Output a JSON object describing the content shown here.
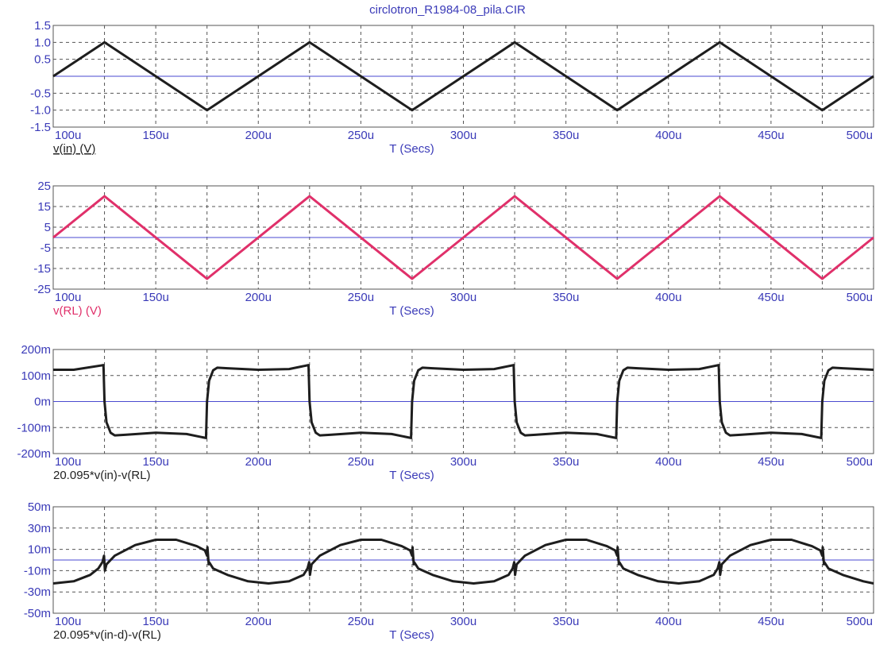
{
  "title": "circlotron_R1984-08_pila.CIR",
  "colors": {
    "axis_text": "#3a3ab8",
    "grid": "#555555",
    "zero_line": "#4a4ad0",
    "trace_dark": "#1e1e1e",
    "trace_pink": "#e0306a"
  },
  "chart_data": [
    {
      "type": "line",
      "xlabel": "T (Secs)",
      "trace_label": "v(in) (V)",
      "xlim": [
        100,
        500
      ],
      "x_tick_labels": [
        "100u",
        "150u",
        "200u",
        "250u",
        "300u",
        "350u",
        "400u",
        "450u",
        "500u"
      ],
      "ylim": [
        -1.5,
        1.5
      ],
      "y_ticks": [
        1.5,
        1.0,
        0.5,
        -0.5,
        -1.0,
        -1.5
      ],
      "y_tick_labels": [
        "1.5",
        "1.0",
        "0.5",
        "-0.5",
        "-1.0",
        "-1.5"
      ],
      "series": [
        {
          "color": "#1e1e1e",
          "x": [
            100,
            125,
            175,
            225,
            275,
            325,
            375,
            425,
            475,
            500
          ],
          "y": [
            0,
            1,
            -1,
            1,
            -1,
            1,
            -1,
            1,
            -1,
            0
          ]
        }
      ]
    },
    {
      "type": "line",
      "xlabel": "T (Secs)",
      "trace_label": "v(RL) (V)",
      "xlim": [
        100,
        500
      ],
      "x_tick_labels": [
        "100u",
        "150u",
        "200u",
        "250u",
        "300u",
        "350u",
        "400u",
        "450u",
        "500u"
      ],
      "ylim": [
        -25,
        25
      ],
      "y_ticks": [
        25,
        15,
        5,
        -5,
        -15,
        -25
      ],
      "y_tick_labels": [
        "25",
        "15",
        "5",
        "-5",
        "-15",
        "-25"
      ],
      "series": [
        {
          "color": "#e0306a",
          "x": [
            100,
            125,
            175,
            225,
            275,
            325,
            375,
            425,
            475,
            500
          ],
          "y": [
            0,
            20,
            -20,
            20,
            -20,
            20,
            -20,
            20,
            -20,
            0
          ]
        }
      ]
    },
    {
      "type": "line",
      "xlabel": "T (Secs)",
      "trace_label": "20.095*v(in)-v(RL)",
      "xlim": [
        100,
        500
      ],
      "x_tick_labels": [
        "100u",
        "150u",
        "200u",
        "250u",
        "300u",
        "350u",
        "400u",
        "450u",
        "500u"
      ],
      "ylim": [
        -200,
        200
      ],
      "y_ticks": [
        200,
        100,
        0,
        -100,
        -200
      ],
      "y_tick_labels": [
        "200m",
        "100m",
        "0m",
        "-100m",
        "-200m"
      ],
      "series": [
        {
          "color": "#1e1e1e",
          "x": [
            100,
            110,
            124.5,
            125,
            126,
            128,
            130,
            135,
            150,
            165,
            174.5,
            175,
            176,
            178,
            180,
            185,
            200,
            215,
            224.5,
            225,
            226,
            228,
            230,
            235,
            250,
            265,
            274.5,
            275,
            276,
            278,
            280,
            285,
            300,
            315,
            324.5,
            325,
            326,
            328,
            330,
            335,
            350,
            365,
            374.5,
            375,
            376,
            378,
            380,
            385,
            400,
            415,
            424.5,
            425,
            426,
            428,
            430,
            435,
            450,
            465,
            474.5,
            475,
            476,
            478,
            480,
            485,
            500
          ],
          "y": [
            122,
            122,
            140,
            0,
            -80,
            -120,
            -130,
            -128,
            -120,
            -125,
            -140,
            0,
            80,
            120,
            130,
            128,
            122,
            125,
            140,
            0,
            -80,
            -120,
            -130,
            -128,
            -120,
            -125,
            -140,
            0,
            80,
            120,
            130,
            128,
            122,
            125,
            140,
            0,
            -80,
            -120,
            -130,
            -128,
            -120,
            -125,
            -140,
            0,
            80,
            120,
            130,
            128,
            122,
            125,
            140,
            0,
            -80,
            -120,
            -130,
            -128,
            -120,
            -125,
            -140,
            0,
            80,
            120,
            130,
            128,
            122
          ]
        }
      ]
    },
    {
      "type": "line",
      "xlabel": "T (Secs)",
      "trace_label": "20.095*v(in-d)-v(RL)",
      "xlim": [
        100,
        500
      ],
      "x_tick_labels": [
        "100u",
        "150u",
        "200u",
        "250u",
        "300u",
        "350u",
        "400u",
        "450u",
        "500u"
      ],
      "ylim": [
        -50,
        50
      ],
      "y_ticks": [
        50,
        30,
        10,
        -10,
        -30,
        -50
      ],
      "y_tick_labels": [
        "50m",
        "30m",
        "10m",
        "-10m",
        "-30m",
        "-50m"
      ],
      "series": [
        {
          "color": "#1e1e1e",
          "x": [
            100,
            110,
            118,
            122,
            124,
            124.8,
            125.2,
            126,
            130,
            140,
            150,
            160,
            170,
            174,
            175,
            175.2,
            175.8,
            176,
            178,
            185,
            195,
            205,
            215,
            222,
            224,
            224.8,
            225.2,
            226,
            230,
            240,
            250,
            260,
            270,
            274,
            275,
            275.2,
            275.8,
            276,
            278,
            285,
            295,
            305,
            315,
            322,
            324,
            324.8,
            325.2,
            326,
            330,
            340,
            350,
            360,
            370,
            374,
            375,
            375.2,
            375.8,
            376,
            378,
            385,
            395,
            405,
            415,
            422,
            424,
            424.8,
            425.2,
            426,
            430,
            440,
            450,
            460,
            470,
            474,
            475,
            475.2,
            475.8,
            476,
            478,
            485,
            495,
            500
          ],
          "y": [
            -22,
            -20,
            -14,
            -8,
            -2,
            4,
            -10,
            -4,
            4,
            14,
            19,
            19,
            13,
            9,
            4,
            12,
            -4,
            -2,
            -8,
            -14,
            -20,
            -22,
            -20,
            -14,
            -8,
            -2,
            -14,
            -4,
            4,
            14,
            19,
            19,
            13,
            9,
            4,
            12,
            -4,
            -2,
            -8,
            -14,
            -20,
            -22,
            -20,
            -14,
            -8,
            -2,
            -14,
            -4,
            4,
            14,
            19,
            19,
            13,
            9,
            4,
            12,
            -4,
            -2,
            -8,
            -14,
            -20,
            -22,
            -20,
            -14,
            -8,
            -2,
            -14,
            -4,
            4,
            14,
            19,
            19,
            13,
            9,
            4,
            12,
            -4,
            -2,
            -8,
            -14,
            -20,
            -22
          ]
        }
      ]
    }
  ]
}
